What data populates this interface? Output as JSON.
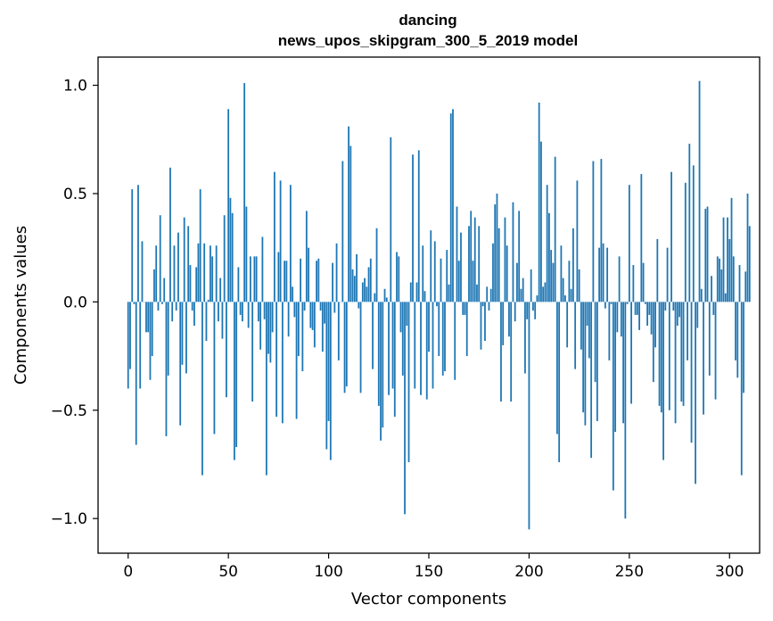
{
  "chart_data": {
    "type": "bar",
    "title_line1": "dancing",
    "title_line2": "news_upos_skipgram_300_5_2019 model",
    "xlabel": "Vector components",
    "ylabel": "Components values",
    "xlim": [
      -15,
      315
    ],
    "ylim": [
      -1.16,
      1.13
    ],
    "xticks": [
      0,
      50,
      100,
      150,
      200,
      250,
      300
    ],
    "xtick_labels": [
      "0",
      "50",
      "100",
      "150",
      "200",
      "250",
      "300"
    ],
    "yticks": [
      -1.0,
      -0.5,
      0.0,
      0.5,
      1.0
    ],
    "ytick_labels": [
      "−1.0",
      "−0.5",
      "0.0",
      "0.5",
      "1.0"
    ],
    "bar_color": "#1f77b4",
    "values": [
      -0.4,
      -0.31,
      0.52,
      -0.01,
      -0.66,
      0.54,
      -0.4,
      0.28,
      0.0,
      -0.14,
      -0.14,
      -0.36,
      -0.25,
      0.15,
      0.26,
      -0.04,
      0.4,
      -0.01,
      0.11,
      -0.62,
      -0.34,
      0.62,
      -0.09,
      0.26,
      -0.04,
      0.32,
      -0.57,
      -0.29,
      0.39,
      -0.33,
      0.35,
      0.17,
      -0.04,
      -0.11,
      0.16,
      0.27,
      0.52,
      -0.8,
      0.27,
      -0.18,
      0.01,
      0.26,
      0.21,
      -0.61,
      0.26,
      -0.09,
      0.11,
      -0.17,
      0.4,
      -0.44,
      0.89,
      0.48,
      0.41,
      -0.73,
      -0.67,
      0.16,
      -0.06,
      -0.09,
      1.01,
      0.44,
      -0.12,
      0.21,
      -0.46,
      0.21,
      0.21,
      -0.09,
      -0.22,
      0.3,
      -0.08,
      -0.8,
      -0.24,
      -0.28,
      -0.14,
      0.6,
      -0.53,
      0.23,
      0.56,
      -0.56,
      0.19,
      0.19,
      -0.16,
      0.54,
      0.07,
      -0.07,
      -0.54,
      -0.25,
      0.2,
      -0.32,
      -0.04,
      0.42,
      0.25,
      -0.12,
      -0.13,
      -0.21,
      0.19,
      0.2,
      -0.04,
      -0.23,
      -0.1,
      -0.68,
      -0.55,
      -0.73,
      0.18,
      -0.05,
      0.27,
      -0.27,
      0.0,
      0.65,
      -0.42,
      -0.39,
      0.81,
      0.72,
      0.15,
      0.12,
      0.22,
      -0.03,
      -0.42,
      0.09,
      0.11,
      0.07,
      0.16,
      0.2,
      -0.31,
      0.04,
      0.34,
      -0.48,
      -0.64,
      -0.58,
      0.06,
      0.02,
      -0.43,
      0.76,
      -0.4,
      -0.53,
      0.23,
      0.21,
      -0.14,
      -0.34,
      -0.98,
      -0.11,
      -0.74,
      0.09,
      0.68,
      -0.4,
      0.09,
      0.7,
      -0.43,
      0.26,
      0.05,
      -0.45,
      -0.23,
      0.33,
      -0.4,
      0.28,
      -0.02,
      -0.25,
      0.2,
      -0.34,
      -0.32,
      0.24,
      0.08,
      0.87,
      0.89,
      -0.36,
      0.44,
      0.19,
      0.32,
      -0.06,
      -0.06,
      -0.25,
      0.35,
      0.42,
      0.19,
      0.39,
      0.08,
      0.35,
      -0.22,
      -0.02,
      -0.18,
      0.07,
      -0.04,
      0.06,
      0.27,
      0.45,
      0.5,
      0.34,
      -0.46,
      -0.2,
      0.39,
      0.26,
      -0.16,
      -0.46,
      0.46,
      -0.09,
      0.18,
      0.42,
      0.06,
      0.11,
      -0.33,
      -0.08,
      -1.05,
      0.15,
      -0.04,
      -0.08,
      0.03,
      0.92,
      0.74,
      0.07,
      0.09,
      0.54,
      0.41,
      0.24,
      0.18,
      0.67,
      -0.61,
      -0.74,
      0.26,
      0.11,
      0.03,
      -0.21,
      0.19,
      0.06,
      0.34,
      -0.31,
      0.56,
      0.15,
      -0.22,
      -0.51,
      -0.57,
      -0.11,
      -0.26,
      -0.72,
      0.65,
      -0.37,
      -0.55,
      0.25,
      0.66,
      0.27,
      -0.03,
      0.25,
      -0.27,
      -0.01,
      -0.87,
      -0.6,
      -0.14,
      0.21,
      -0.16,
      -0.56,
      -1.0,
      -0.01,
      0.54,
      -0.47,
      0.17,
      -0.06,
      -0.06,
      -0.13,
      0.59,
      0.18,
      -0.01,
      -0.11,
      -0.06,
      -0.15,
      -0.37,
      -0.21,
      0.29,
      -0.48,
      -0.51,
      -0.73,
      -0.04,
      0.25,
      -0.5,
      0.6,
      -0.04,
      -0.56,
      -0.11,
      -0.07,
      -0.46,
      -0.48,
      0.55,
      -0.27,
      0.73,
      -0.65,
      0.63,
      -0.84,
      -0.12,
      1.02,
      0.06,
      -0.52,
      0.43,
      0.44,
      -0.34,
      0.12,
      -0.06,
      -0.45,
      0.21,
      0.2,
      0.15,
      0.39,
      0.04,
      0.39,
      0.29,
      0.48,
      0.21,
      -0.27,
      -0.35,
      0.17,
      -0.8,
      -0.42,
      0.14,
      0.5,
      0.35
    ]
  }
}
